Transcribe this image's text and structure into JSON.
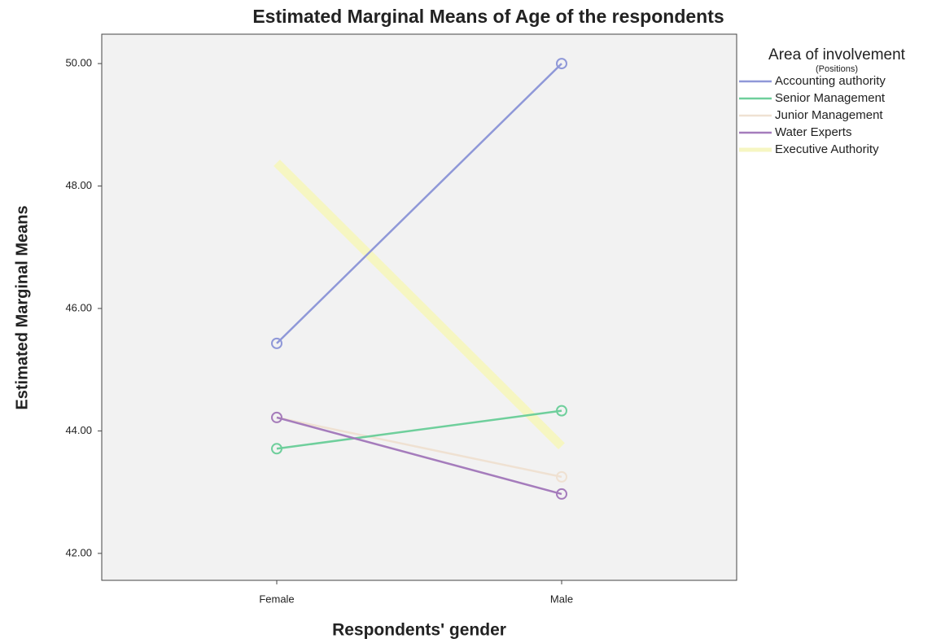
{
  "chart_data": {
    "type": "line",
    "title": "Estimated Marginal Means of Age of the respondents",
    "x_label": "Respondents' gender",
    "y_label": "Estimated Marginal Means",
    "legend_title": "Area of involvement",
    "legend_subtitle": "(Positions)",
    "categories": [
      "Female",
      "Male"
    ],
    "series": [
      {
        "name": "Accounting authority",
        "color": "#8f98d8",
        "marker": true,
        "values": [
          45.43,
          50.0
        ]
      },
      {
        "name": "Senior Management",
        "color": "#6fcf9c",
        "marker": true,
        "values": [
          43.71,
          44.33
        ]
      },
      {
        "name": "Junior Management",
        "color": "#efe1d2",
        "marker": true,
        "values": [
          44.22,
          43.25
        ]
      },
      {
        "name": "Water Experts",
        "color": "#a57cbc",
        "marker": true,
        "values": [
          44.22,
          42.97
        ]
      },
      {
        "name": "Executive Authority",
        "color": "#f6f6c2",
        "marker": false,
        "values": [
          48.38,
          43.75
        ]
      }
    ],
    "ylim": [
      41.56,
      50.48
    ],
    "yticks": [
      {
        "value": 42,
        "label": "42.00"
      },
      {
        "value": 44,
        "label": "44.00"
      },
      {
        "value": 46,
        "label": "46.00"
      },
      {
        "value": 48,
        "label": "48.00"
      },
      {
        "value": 50,
        "label": "50.00"
      }
    ],
    "legend": "right"
  }
}
